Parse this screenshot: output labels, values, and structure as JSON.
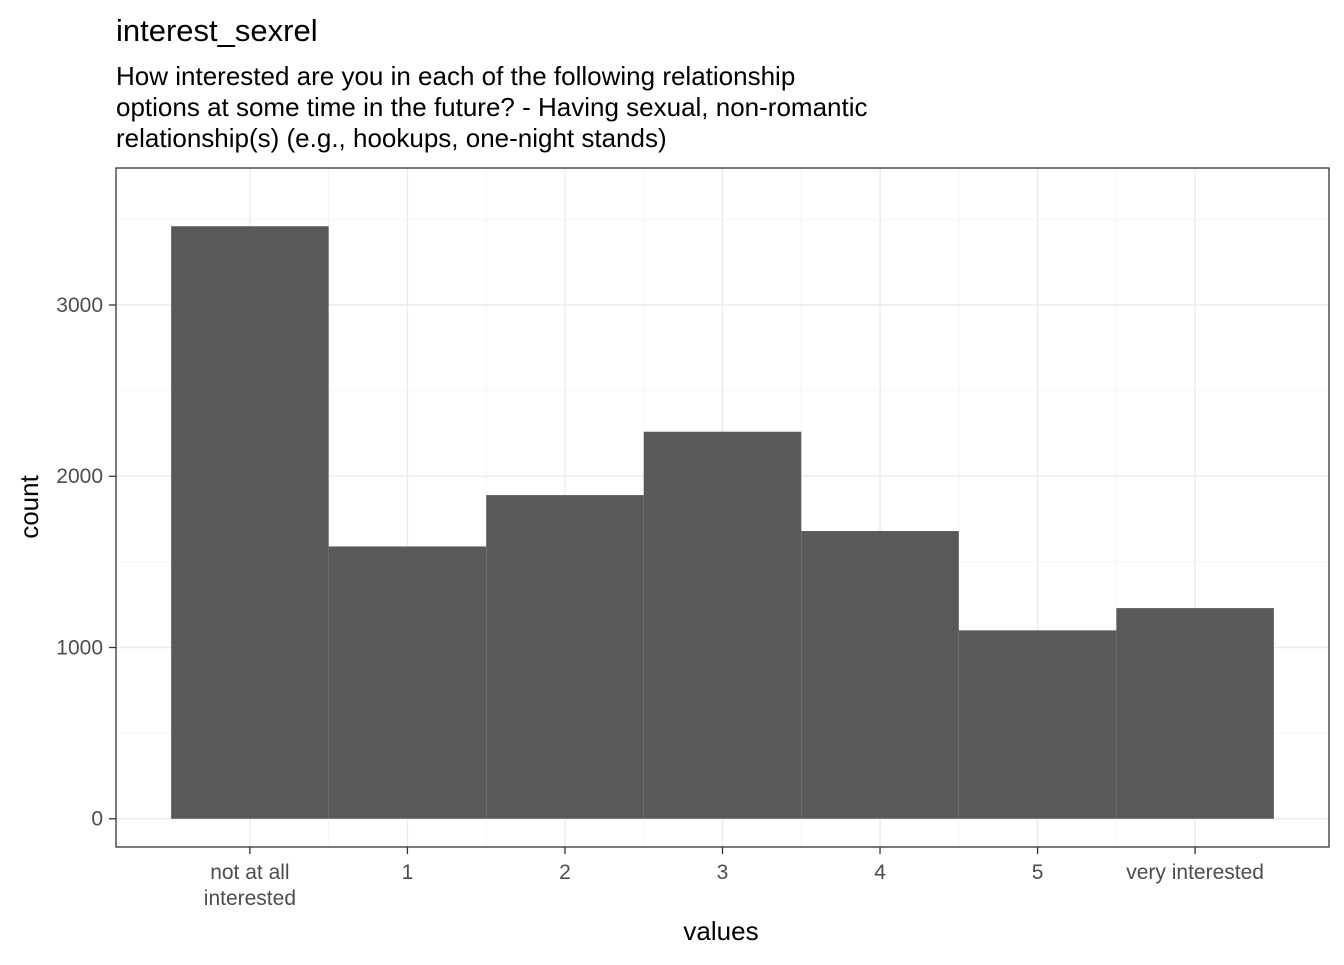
{
  "chart_data": {
    "type": "bar",
    "title": "interest_sexrel",
    "subtitle": [
      "How interested are you in each of the following relationship",
      "options at some time in the future? - Having sexual, non-romantic",
      "relationship(s) (e.g., hookups, one-night stands)"
    ],
    "xlabel": "values",
    "ylabel": "count",
    "categories": [
      [
        "not at all",
        "interested"
      ],
      [
        "1"
      ],
      [
        "2"
      ],
      [
        "3"
      ],
      [
        "4"
      ],
      [
        "5"
      ],
      [
        "very interested"
      ]
    ],
    "values": [
      3460,
      1590,
      1890,
      2260,
      1680,
      1100,
      1230
    ],
    "yticks": [
      0,
      1000,
      2000,
      3000
    ],
    "ytick_labels": [
      "0",
      "1000",
      "2000",
      "3000"
    ],
    "ylim": [
      -165,
      3800
    ],
    "grid": true,
    "legend": "none",
    "colors": {
      "bar": "#595959",
      "grid_major": "#ebebeb",
      "grid_minor": "#f5f5f5",
      "panel_border": "#333333"
    }
  }
}
